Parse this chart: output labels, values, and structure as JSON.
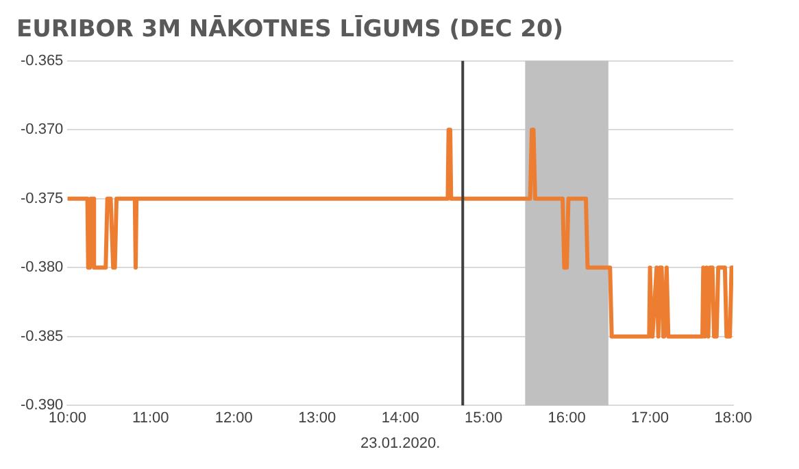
{
  "chart_data": {
    "type": "line",
    "title": "EURIBOR 3M NĀKOTNES LĪGUMS (DEC 20)",
    "xlabel": "23.01.2020.",
    "x": [
      10,
      10.24,
      10.25,
      10.27,
      10.28,
      10.31,
      10.32,
      10.35,
      10.46,
      10.48,
      10.5,
      10.52,
      10.55,
      10.57,
      10.59,
      10.81,
      10.82,
      10.83,
      10.84,
      14.57,
      14.58,
      14.6,
      14.61,
      15.56,
      15.58,
      15.6,
      15.62,
      15.95,
      15.97,
      16.0,
      16.02,
      16.23,
      16.25,
      16.52,
      16.54,
      16.99,
      17.0,
      17.02,
      17.03,
      17.08,
      17.1,
      17.12,
      17.14,
      17.16,
      17.17,
      17.2,
      17.22,
      17.63,
      17.64,
      17.66,
      17.68,
      17.7,
      17.72,
      17.75,
      17.77,
      17.8,
      17.82,
      17.9,
      17.92,
      17.96,
      17.98,
      18.0
    ],
    "series": [
      {
        "color": "#ed7d31",
        "values": [
          -0.375,
          -0.375,
          -0.38,
          -0.38,
          -0.375,
          -0.375,
          -0.38,
          -0.38,
          -0.38,
          -0.375,
          -0.375,
          -0.375,
          -0.38,
          -0.38,
          -0.375,
          -0.375,
          -0.38,
          -0.375,
          -0.375,
          -0.375,
          -0.37,
          -0.37,
          -0.375,
          -0.375,
          -0.37,
          -0.37,
          -0.375,
          -0.375,
          -0.38,
          -0.38,
          -0.375,
          -0.375,
          -0.38,
          -0.38,
          -0.385,
          -0.385,
          -0.38,
          -0.385,
          -0.385,
          -0.38,
          -0.385,
          -0.38,
          -0.38,
          -0.385,
          -0.385,
          -0.38,
          -0.385,
          -0.385,
          -0.38,
          -0.385,
          -0.38,
          -0.385,
          -0.38,
          -0.38,
          -0.385,
          -0.385,
          -0.38,
          -0.38,
          -0.385,
          -0.385,
          -0.38,
          -0.38
        ]
      }
    ],
    "xlim": [
      10,
      18
    ],
    "xticks": [
      {
        "value": 10,
        "label": "10:00"
      },
      {
        "value": 11,
        "label": "11:00"
      },
      {
        "value": 12,
        "label": "12:00"
      },
      {
        "value": 13,
        "label": "13:00"
      },
      {
        "value": 14,
        "label": "14:00"
      },
      {
        "value": 15,
        "label": "15:00"
      },
      {
        "value": 16,
        "label": "16:00"
      },
      {
        "value": 17,
        "label": "17:00"
      },
      {
        "value": 18,
        "label": "18:00"
      }
    ],
    "ylim": [
      -0.39,
      -0.365
    ],
    "yticks": [
      {
        "value": -0.39,
        "label": "-0.390"
      },
      -0.385,
      {
        "value": -0.38,
        "label": "-0.380"
      },
      -0.375,
      {
        "value": -0.37,
        "label": "-0.370"
      },
      -0.365
    ],
    "ref_lines": [
      {
        "axis": "x",
        "value": 14.75,
        "color": "#404040"
      }
    ],
    "bands": [
      {
        "axis": "x",
        "from": 15.5,
        "to": 16.5,
        "color": "#c0c0c0"
      }
    ],
    "grid": "y",
    "marker": "none",
    "line_style": "solid",
    "legend": false
  }
}
